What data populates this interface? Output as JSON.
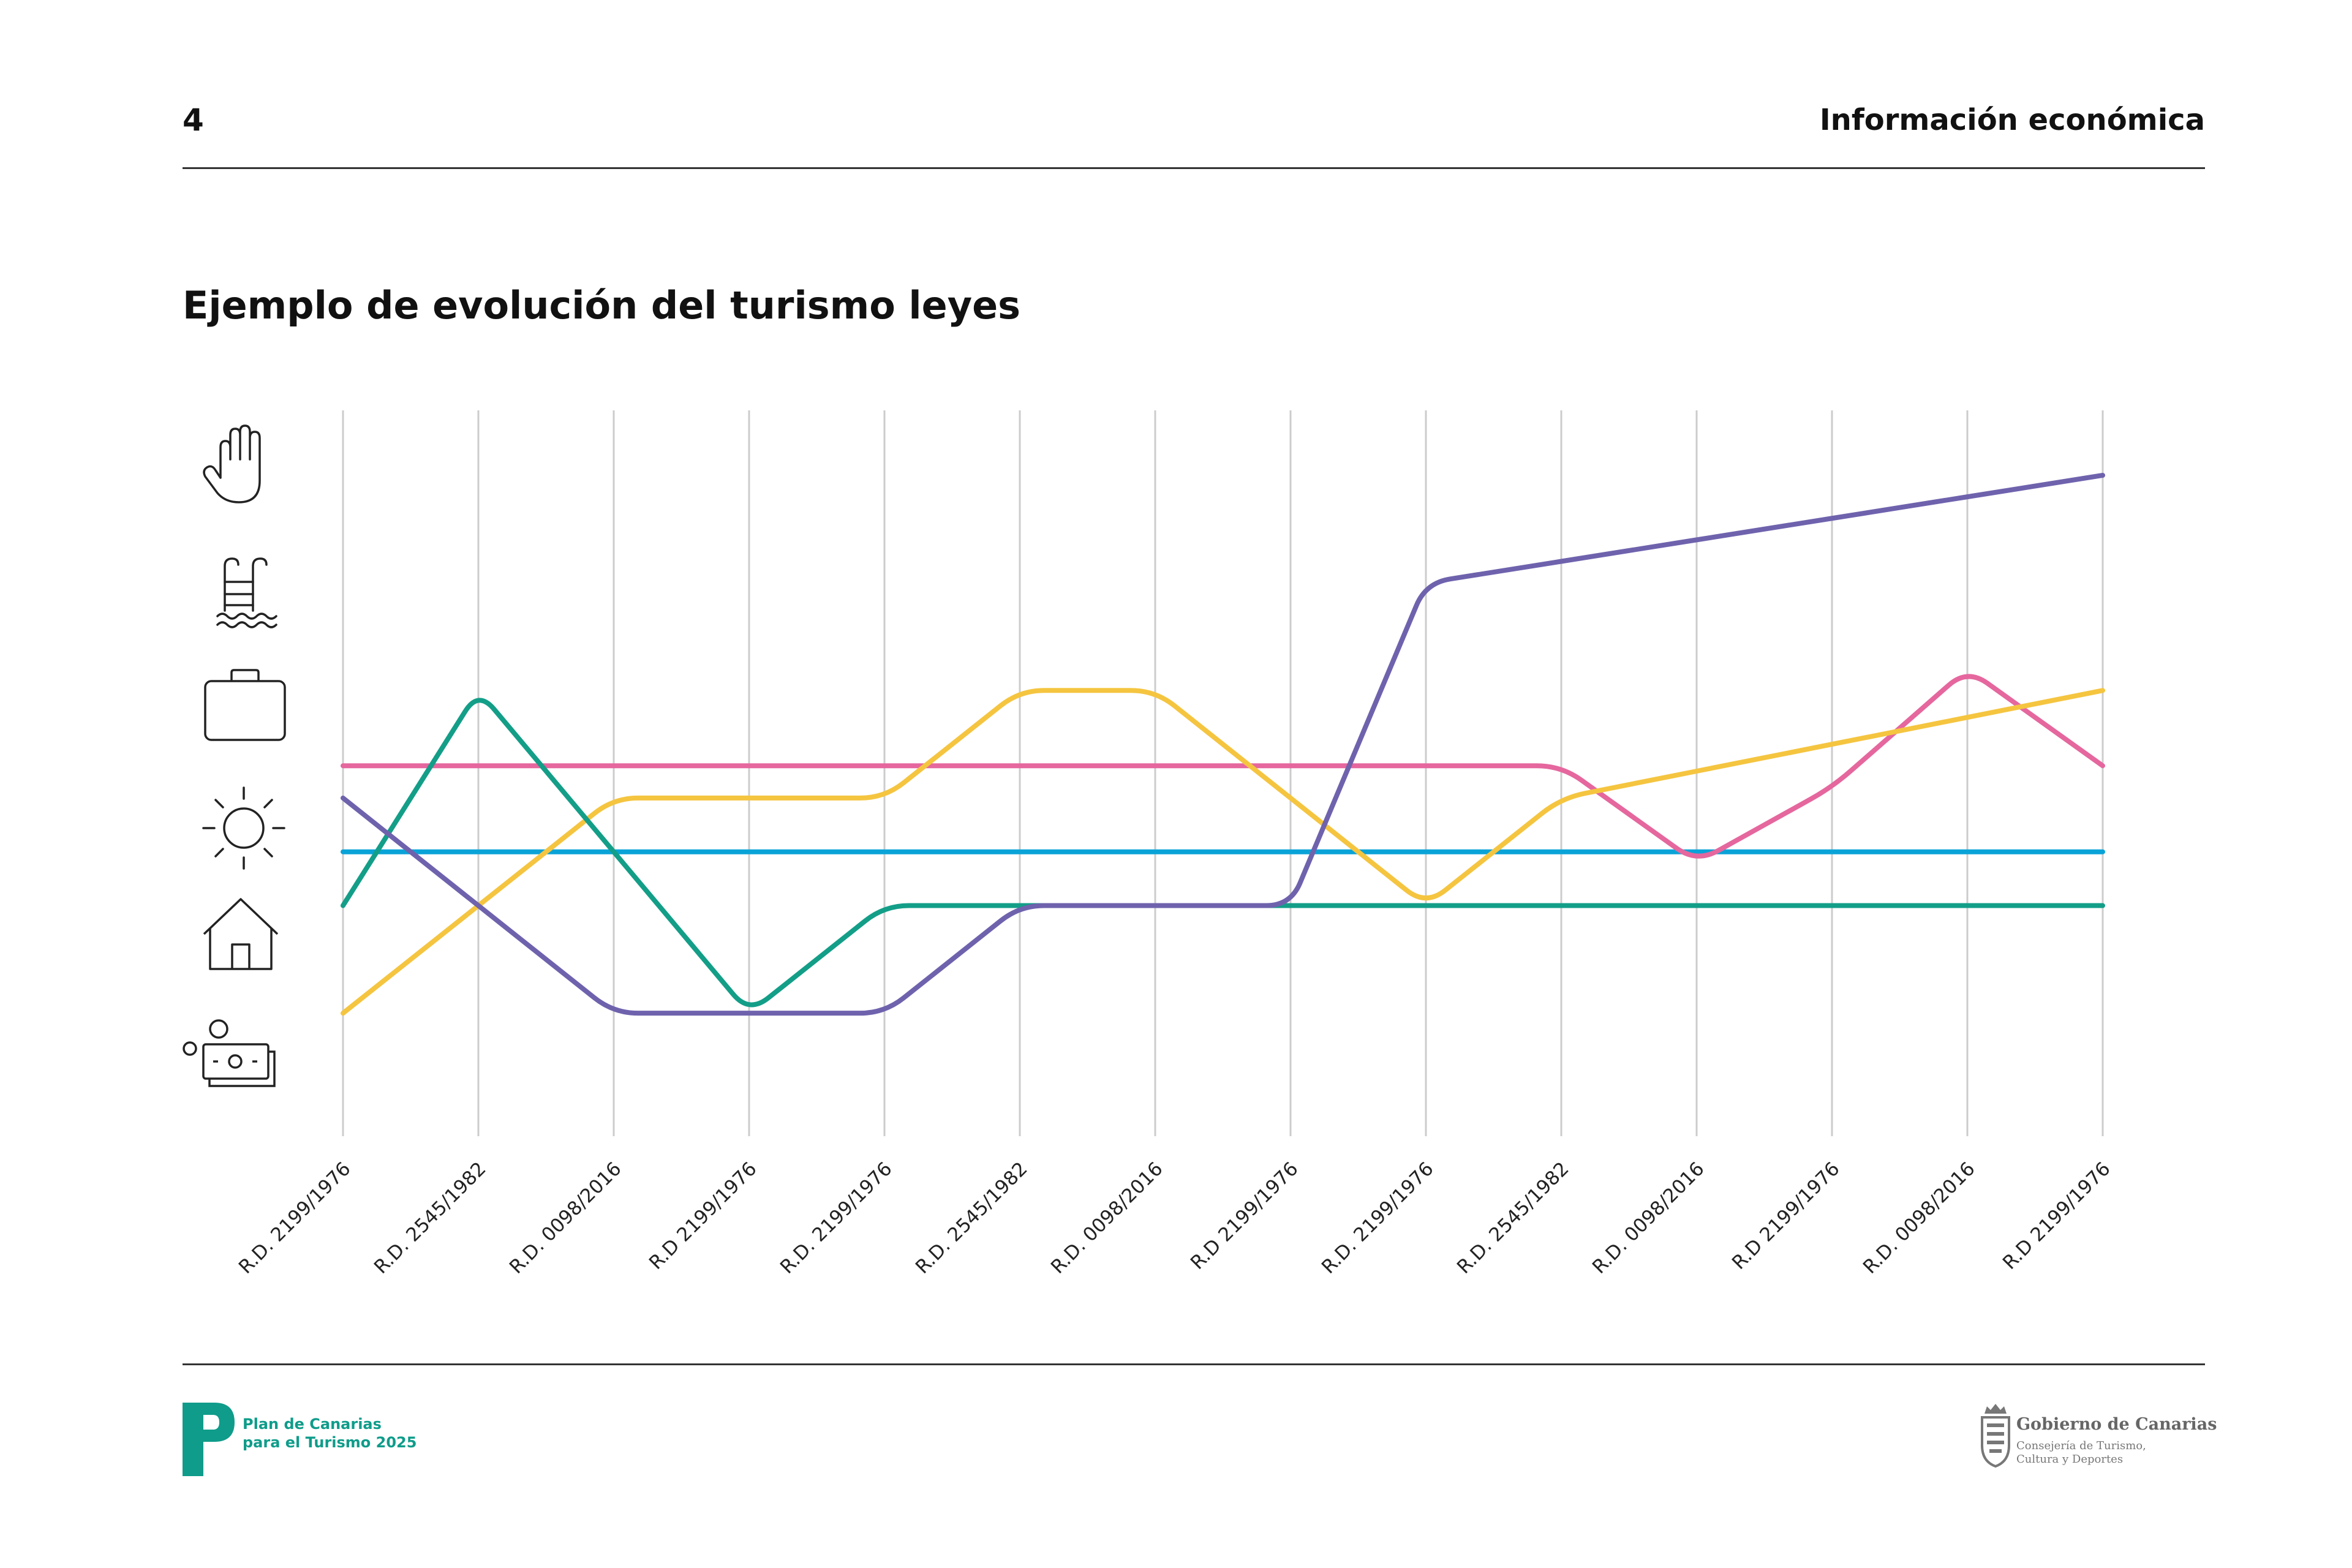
{
  "header": {
    "page_number": "4",
    "section_title": "Información económica"
  },
  "chart_title": "Ejemplo de evolución del turismo leyes",
  "icons": [
    "hand-icon",
    "pool-ladder-icon",
    "briefcase-icon",
    "sun-icon",
    "house-icon",
    "money-icon"
  ],
  "chart_data": {
    "type": "line",
    "title": "Ejemplo de evolución del turismo leyes",
    "categories": [
      "R.D. 2199/1976",
      "R.D. 2545/1982",
      "R.D. 0098/2016",
      "R.D 2199/1976",
      "R.D. 2199/1976",
      "R.D. 2545/1982",
      "R.D. 0098/2016",
      "R.D 2199/1976",
      "R.D. 2199/1976",
      "R.D. 2545/1982",
      "R.D. 0098/2016",
      "R.D 2199/1976",
      "R.D. 0098/2016",
      "R.D 2199/1976"
    ],
    "ylim": [
      0,
      5.5
    ],
    "grid": "vertical",
    "series": [
      {
        "color": "#0aa3d8",
        "values": [
          2.0,
          2.0,
          2.0,
          2.0,
          2.0,
          2.0,
          2.0,
          2.0,
          2.0,
          2.0,
          2.0,
          2.0,
          2.0,
          2.0
        ]
      },
      {
        "color": "#e5679e",
        "values": [
          2.8,
          2.8,
          2.8,
          2.8,
          2.8,
          2.8,
          2.8,
          2.8,
          2.8,
          2.8,
          1.9,
          2.6,
          3.7,
          2.8
        ]
      },
      {
        "color": "#f5c540",
        "values": [
          0.5,
          1.5,
          2.5,
          2.5,
          2.5,
          3.5,
          3.5,
          2.5,
          1.5,
          2.5,
          2.75,
          3.0,
          3.25,
          3.5
        ]
      },
      {
        "color": "#139e88",
        "values": [
          1.5,
          3.5,
          2.0,
          0.5,
          1.5,
          1.5,
          1.5,
          1.5,
          1.5,
          1.5,
          1.5,
          1.5,
          1.5,
          1.5
        ]
      },
      {
        "color": "#6f62ad",
        "values": [
          2.5,
          1.5,
          0.5,
          0.5,
          0.5,
          1.5,
          1.5,
          1.5,
          4.5,
          4.7,
          4.9,
          5.1,
          5.3,
          5.5
        ]
      }
    ]
  },
  "footer": {
    "plan_line1": "Plan de Canarias",
    "plan_line2": "para el Turismo 2025",
    "gov_name": "Gobierno de Canarias",
    "gov_sub1": "Consejería de Turismo,",
    "gov_sub2": "Cultura y Deportes"
  }
}
